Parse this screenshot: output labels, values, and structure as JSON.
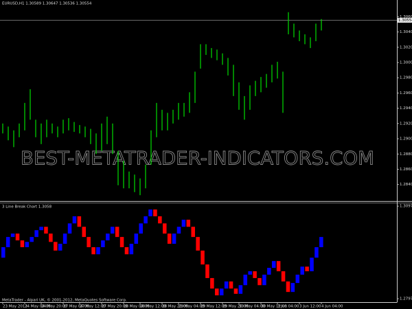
{
  "chart_data": [
    {
      "type": "hlbar",
      "title": "EURUSD,H1  1.30589 1.30647 1.30536 1.30554",
      "color": "#00e000",
      "x": [
        0,
        1,
        2,
        3,
        4,
        5,
        6,
        7,
        8,
        9,
        10,
        11,
        12,
        13,
        14,
        15,
        16,
        17,
        18,
        19,
        20,
        21,
        22,
        23,
        24,
        25,
        26,
        27,
        28,
        29,
        30,
        31,
        32,
        33,
        34,
        35,
        36,
        37,
        38,
        39,
        40,
        41,
        42,
        43,
        44,
        45,
        46,
        47,
        48,
        49,
        50,
        51,
        52,
        53,
        54,
        55,
        56,
        57,
        58
      ],
      "high": [
        1.292,
        1.2916,
        1.2911,
        1.292,
        1.2947,
        1.2965,
        1.2925,
        1.292,
        1.2925,
        1.292,
        1.2916,
        1.2925,
        1.2927,
        1.2922,
        1.2918,
        1.2916,
        1.2913,
        1.2907,
        1.292,
        1.2929,
        1.292,
        1.2884,
        1.2871,
        1.2857,
        1.2853,
        1.2848,
        1.2866,
        1.2911,
        1.2947,
        1.2938,
        1.2934,
        1.2938,
        1.2947,
        1.2947,
        1.2961,
        1.2988,
        1.3024,
        1.3024,
        1.3019,
        1.3017,
        1.3012,
        1.3006,
        1.2997,
        1.2974,
        1.2956,
        1.297,
        1.2976,
        1.2981,
        1.2985,
        1.2997,
        1.3001,
        1.2988,
        1.3066,
        1.3051,
        1.3042,
        1.3037,
        1.3033,
        1.3051,
        1.3057
      ],
      "low": [
        1.2907,
        1.2898,
        1.2889,
        1.2902,
        1.2911,
        1.2925,
        1.2902,
        1.2893,
        1.2902,
        1.2907,
        1.2902,
        1.2907,
        1.2911,
        1.2909,
        1.2907,
        1.2902,
        1.2893,
        1.288,
        1.2884,
        1.2893,
        1.288,
        1.2839,
        1.2835,
        1.2835,
        1.283,
        1.2826,
        1.2835,
        1.2866,
        1.2902,
        1.2911,
        1.2911,
        1.292,
        1.2925,
        1.2929,
        1.2934,
        1.2947,
        1.2992,
        1.301,
        1.3006,
        1.3003,
        1.2997,
        1.2983,
        1.2956,
        1.2938,
        1.2925,
        1.2938,
        1.2956,
        1.2961,
        1.2967,
        1.2974,
        1.2979,
        1.2934,
        1.3037,
        1.3033,
        1.3028,
        1.3024,
        1.3019,
        1.3028,
        1.3042
      ],
      "last_price": 1.30554,
      "xlim": [
        -0.5,
        71.75
      ],
      "xticks": [
        {
          "value": 0,
          "label": "23 May 2013"
        },
        {
          "value": 4,
          "label": "24 May 04:00"
        },
        {
          "value": 7,
          "label": "24 May 20:00"
        },
        {
          "value": 11,
          "label": "27 May 04:00"
        },
        {
          "value": 14,
          "label": "27 May 12:00"
        },
        {
          "value": 18,
          "label": "27 May 20:00"
        },
        {
          "value": 22,
          "label": "28 May 04:00"
        },
        {
          "value": 25,
          "label": "28 May 12:00"
        },
        {
          "value": 29,
          "label": "28 May 20:00"
        },
        {
          "value": 32,
          "label": "29 May 04:00"
        },
        {
          "value": 36,
          "label": "29 May 12:00"
        },
        {
          "value": 40,
          "label": "29 May 20:00"
        },
        {
          "value": 43,
          "label": "30 May 04:00"
        },
        {
          "value": 47,
          "label": "30 May 12:00"
        },
        {
          "value": 50,
          "label": "3 Jun 04:00"
        },
        {
          "value": 54,
          "label": "3 Jun 12:00"
        },
        {
          "value": 58,
          "label": "4 Jun 04:00"
        }
      ],
      "ylim": [
        1.2819,
        1.3082
      ],
      "yticks": [
        {
          "value": 1.306,
          "label": "1.3060"
        },
        {
          "value": 1.304,
          "label": "1.3040"
        },
        {
          "value": 1.302,
          "label": "1.3020"
        },
        {
          "value": 1.3,
          "label": "1.3000"
        },
        {
          "value": 1.298,
          "label": "1.2980"
        },
        {
          "value": 1.296,
          "label": "1.2960"
        },
        {
          "value": 1.294,
          "label": "1.2940"
        },
        {
          "value": 1.292,
          "label": "1.2920"
        },
        {
          "value": 1.29,
          "label": "1.2900"
        },
        {
          "value": 1.288,
          "label": "1.2880"
        },
        {
          "value": 1.286,
          "label": "1.2860"
        },
        {
          "value": 1.284,
          "label": "1.2840"
        }
      ],
      "watermark": "BEST-METATRADER-INDICATORS.COM"
    },
    {
      "type": "line_break",
      "title": "3 Line Break Chart 1.3058",
      "up_color": "#0000ff",
      "down_color": "#ff0000",
      "levels": [
        1.293,
        1.2964,
        1.2997,
        1.3008,
        1.2986,
        1.2964,
        1.2981,
        1.2997,
        1.3019,
        1.303,
        1.3008,
        1.2981,
        1.2953,
        1.2975,
        1.3008,
        1.3041,
        1.3064,
        1.303,
        1.2997,
        1.2964,
        1.2941,
        1.2964,
        1.2986,
        1.3008,
        1.303,
        1.2997,
        1.2964,
        1.2941,
        1.2975,
        1.3008,
        1.3041,
        1.3064,
        1.3086,
        1.3064,
        1.3041,
        1.3008,
        1.2975,
        1.3008,
        1.303,
        1.3053,
        1.303,
        1.2997,
        1.2953,
        1.2908,
        1.2864,
        1.283,
        1.2808,
        1.283,
        1.2853,
        1.283,
        1.2813,
        1.2841,
        1.2875,
        1.2886,
        1.2864,
        1.2841,
        1.2875,
        1.2897,
        1.2919,
        1.2886,
        1.2853,
        1.2819,
        1.2848,
        1.2875,
        1.2901,
        1.2886,
        1.293,
        1.2964,
        1.2997
      ],
      "ylim": [
        1.2786,
        1.3104
      ],
      "yticks": [
        1.3097,
        1.2797
      ],
      "footer": "MetaTrader - Alpari UK, © 2001-2012, MetaQuotes Software Corp."
    }
  ]
}
